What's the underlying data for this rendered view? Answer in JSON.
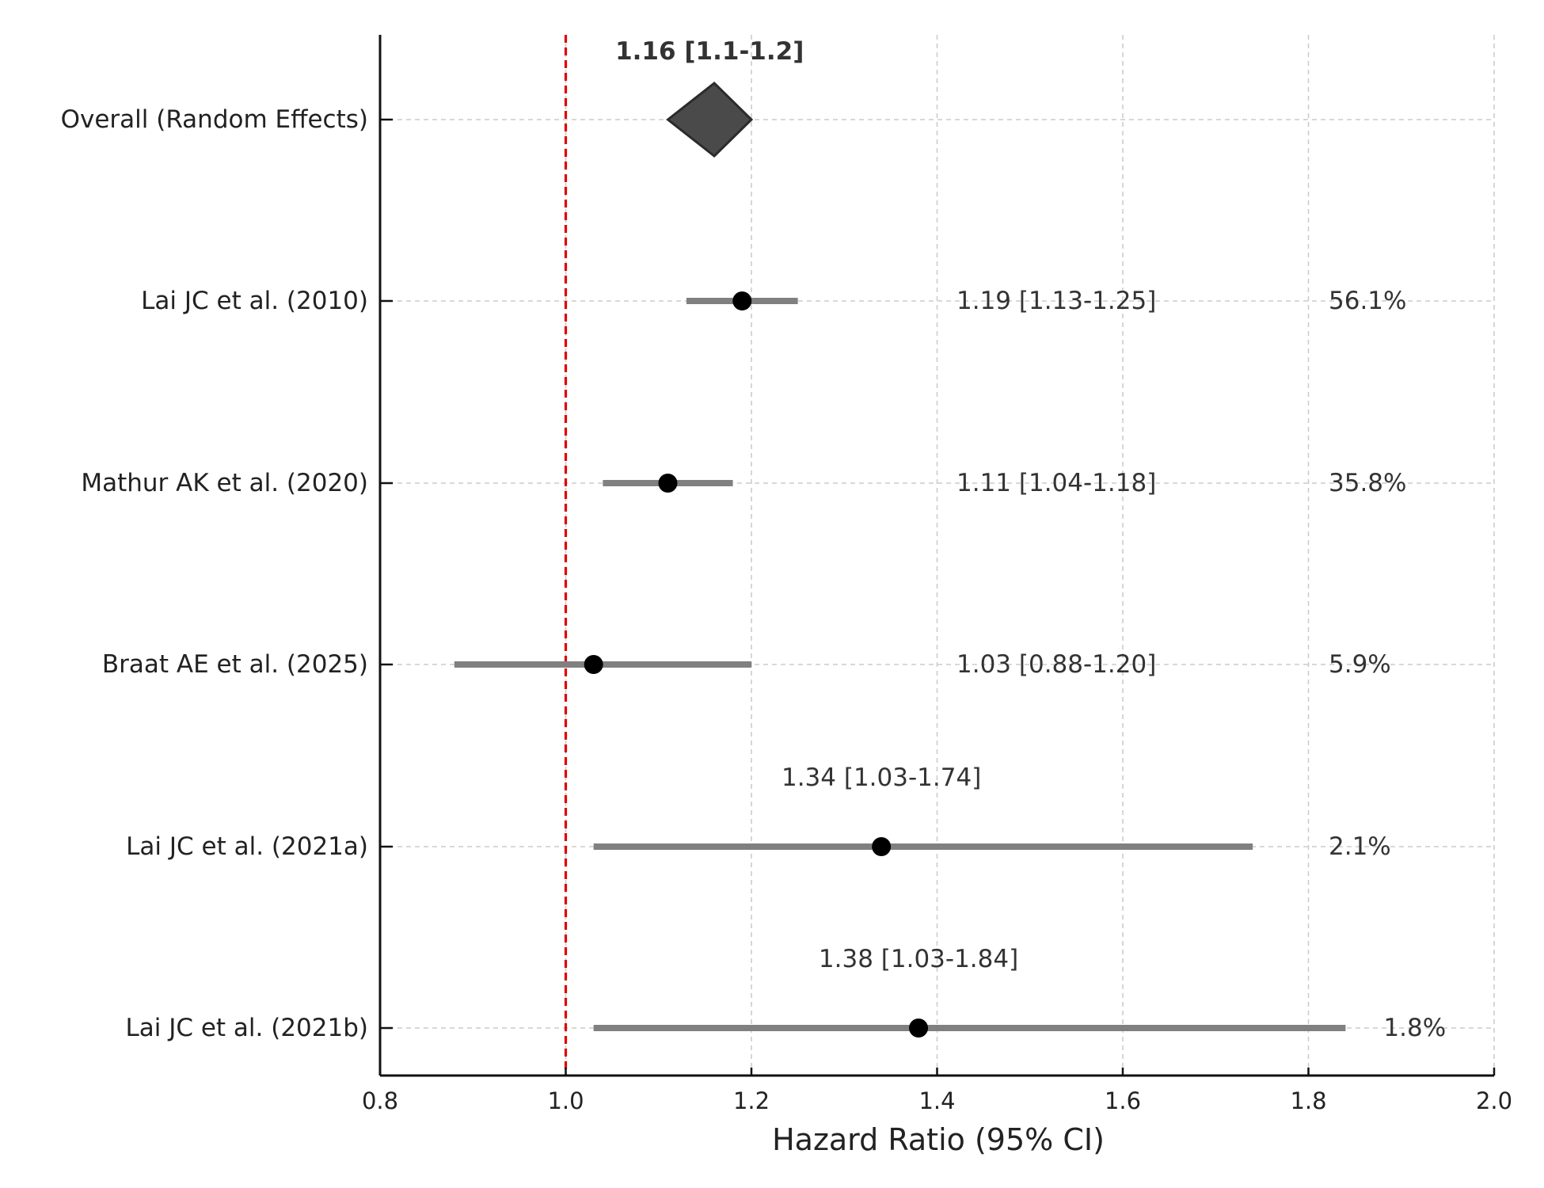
{
  "chart_data": {
    "type": "forest",
    "xlabel": "Hazard Ratio (95% CI)",
    "xlim": [
      0.8,
      2.0
    ],
    "xticks": [
      0.8,
      1.0,
      1.2,
      1.4,
      1.6,
      1.8,
      2.0
    ],
    "xtick_labels": [
      "0.8",
      "1.0",
      "1.2",
      "1.4",
      "1.6",
      "1.8",
      "2.0"
    ],
    "reference_line": 1.0,
    "grid": true,
    "rows": [
      {
        "label": "Overall (Random Effects)",
        "estimate": 1.16,
        "ci": [
          1.11,
          1.2
        ],
        "is_summary": true,
        "annotation": "1.16 [1.1-1.2]"
      },
      {
        "label": "Lai JC et al. (2010)",
        "estimate": 1.19,
        "ci": [
          1.13,
          1.25
        ],
        "annotation": "1.19 [1.13-1.25]",
        "weight": "56.1%"
      },
      {
        "label": "Mathur AK et al. (2020)",
        "estimate": 1.11,
        "ci": [
          1.04,
          1.18
        ],
        "annotation": "1.11 [1.04-1.18]",
        "weight": "35.8%"
      },
      {
        "label": "Braat AE et al. (2025)",
        "estimate": 1.03,
        "ci": [
          0.88,
          1.2
        ],
        "annotation": "1.03 [0.88-1.20]",
        "weight": "5.9%"
      },
      {
        "label": "Lai JC et al. (2021a)",
        "estimate": 1.34,
        "ci": [
          1.03,
          1.74
        ],
        "annotation": "1.34 [1.03-1.74]",
        "weight": "2.1%"
      },
      {
        "label": "Lai JC et al. (2021b)",
        "estimate": 1.38,
        "ci": [
          1.03,
          1.84
        ],
        "annotation": "1.38 [1.03-1.84]",
        "weight": "1.8%"
      }
    ],
    "colors": {
      "ci_line": "#808080",
      "point": "#000000",
      "diamond_fill": "#4a4a4a",
      "diamond_stroke": "#2b2b2b",
      "reference_line": "#e00000",
      "grid": "#cccccc",
      "text": "#222222",
      "annotation_text": "#333333"
    }
  }
}
